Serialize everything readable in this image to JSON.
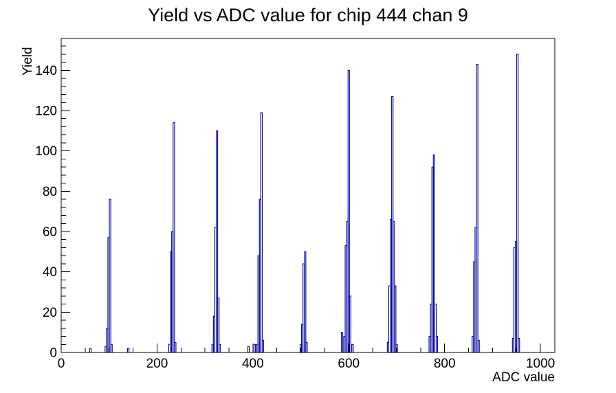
{
  "title": "Yield vs ADC value for chip 444 chan 9",
  "colors": {
    "histogram_line": "#0000A0",
    "axis": "#000000",
    "background": "#ffffff",
    "text": "#000000"
  },
  "chart_data": {
    "type": "bar",
    "title": "Yield vs ADC value for chip 444 chan 9",
    "xlabel": "ADC value",
    "ylabel": "Yield",
    "xlim": [
      0,
      1030
    ],
    "ylim": [
      0,
      155.8
    ],
    "x_major_ticks": [
      0,
      200,
      400,
      600,
      800,
      1000
    ],
    "x_tick_labels": [
      "0",
      "200",
      "400",
      "600",
      "800",
      "1000"
    ],
    "x_minor_step": 50,
    "y_major_ticks": [
      0,
      20,
      40,
      60,
      80,
      100,
      120,
      140
    ],
    "y_tick_labels": [
      "0",
      "20",
      "40",
      "60",
      "80",
      "100",
      "120",
      "140"
    ],
    "y_minor_step": 4,
    "grid": false,
    "legend": "none",
    "bin_width": 3,
    "bins": [
      [
        61,
        2
      ],
      [
        93,
        3
      ],
      [
        96,
        12
      ],
      [
        99,
        57
      ],
      [
        102,
        76
      ],
      [
        105,
        4
      ],
      [
        140,
        2
      ],
      [
        226,
        4
      ],
      [
        229,
        50
      ],
      [
        232,
        60
      ],
      [
        235,
        114
      ],
      [
        238,
        5
      ],
      [
        316,
        4
      ],
      [
        319,
        18
      ],
      [
        322,
        62
      ],
      [
        325,
        110
      ],
      [
        328,
        27
      ],
      [
        331,
        4
      ],
      [
        391,
        3
      ],
      [
        404,
        4
      ],
      [
        409,
        4
      ],
      [
        412,
        48
      ],
      [
        415,
        76
      ],
      [
        418,
        119
      ],
      [
        421,
        6
      ],
      [
        500,
        4
      ],
      [
        503,
        14
      ],
      [
        506,
        44
      ],
      [
        509,
        50
      ],
      [
        512,
        5
      ],
      [
        586,
        10
      ],
      [
        591,
        8
      ],
      [
        594,
        53
      ],
      [
        597,
        65
      ],
      [
        600,
        140
      ],
      [
        603,
        28
      ],
      [
        608,
        4
      ],
      [
        682,
        5
      ],
      [
        685,
        33
      ],
      [
        688,
        66
      ],
      [
        691,
        127
      ],
      [
        694,
        65
      ],
      [
        697,
        33
      ],
      [
        700,
        4
      ],
      [
        769,
        8
      ],
      [
        772,
        24
      ],
      [
        775,
        92
      ],
      [
        778,
        98
      ],
      [
        781,
        24
      ],
      [
        784,
        8
      ],
      [
        859,
        8
      ],
      [
        862,
        45
      ],
      [
        865,
        62
      ],
      [
        868,
        143
      ],
      [
        871,
        6
      ],
      [
        943,
        7
      ],
      [
        946,
        52
      ],
      [
        949,
        55
      ],
      [
        952,
        148
      ],
      [
        955,
        7
      ]
    ]
  }
}
